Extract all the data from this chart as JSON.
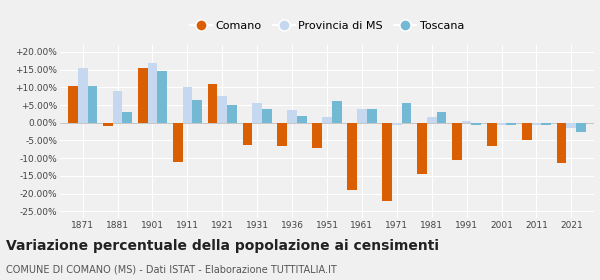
{
  "years": [
    1871,
    1881,
    1901,
    1911,
    1921,
    1931,
    1936,
    1951,
    1961,
    1971,
    1981,
    1991,
    2001,
    2011,
    2021
  ],
  "comano": [
    10.5,
    -0.8,
    15.5,
    -11.0,
    11.0,
    -6.2,
    -6.5,
    -7.0,
    -19.0,
    -22.0,
    -14.5,
    -10.5,
    -6.5,
    -5.0,
    -11.5
  ],
  "provincia": [
    15.5,
    9.0,
    17.0,
    10.0,
    7.5,
    5.5,
    3.5,
    1.5,
    4.0,
    -0.5,
    1.5,
    0.5,
    -0.5,
    -0.5,
    -1.5
  ],
  "toscana": [
    10.5,
    3.0,
    14.5,
    6.5,
    5.0,
    3.8,
    2.0,
    6.0,
    4.0,
    5.5,
    3.0,
    -0.5,
    -0.5,
    -0.5,
    -2.5
  ],
  "color_comano": "#d95f02",
  "color_provincia": "#c6d8ef",
  "color_toscana": "#74b9d4",
  "title": "Variazione percentuale della popolazione ai censimenti",
  "subtitle": "COMUNE DI COMANO (MS) - Dati ISTAT - Elaborazione TUTTITALIA.IT",
  "ylim": [
    -27,
    22
  ],
  "yticks": [
    -25,
    -20,
    -15,
    -10,
    -5,
    0,
    5,
    10,
    15,
    20
  ],
  "ytick_labels": [
    "-25.00%",
    "-20.00%",
    "-15.00%",
    "-10.00%",
    "-5.00%",
    "0.00%",
    "+5.00%",
    "+10.00%",
    "+15.00%",
    "+20.00%"
  ],
  "legend_labels": [
    "Comano",
    "Provincia di MS",
    "Toscana"
  ],
  "bar_width": 0.28,
  "background_color": "#f0f0f0",
  "grid_color": "#ffffff",
  "title_fontsize": 10,
  "subtitle_fontsize": 7,
  "tick_fontsize": 6.5,
  "legend_fontsize": 8
}
